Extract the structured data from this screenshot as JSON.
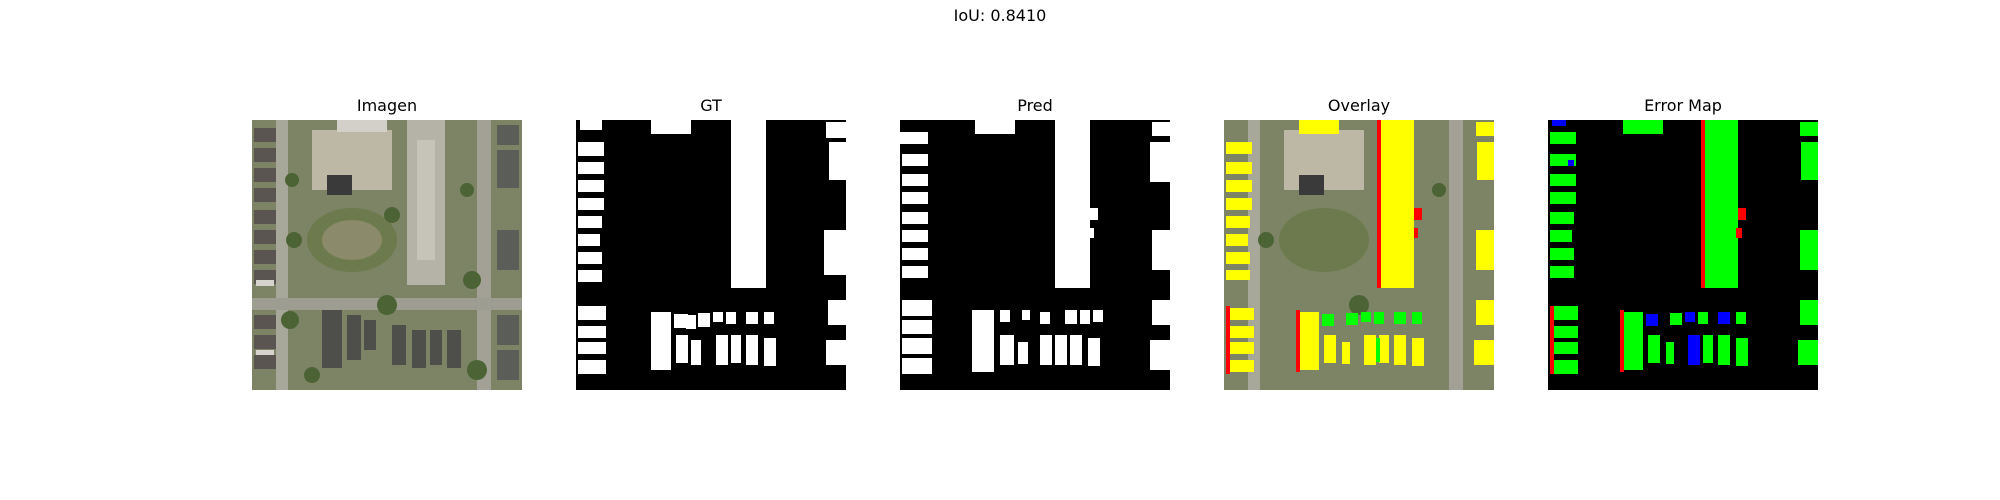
{
  "figure": {
    "suptitle": "IoU: 0.8410",
    "panels": [
      {
        "title": "Imagen",
        "kind": "aerial-image"
      },
      {
        "title": "GT",
        "kind": "ground-truth-mask"
      },
      {
        "title": "Pred",
        "kind": "prediction-mask"
      },
      {
        "title": "Overlay",
        "kind": "overlay"
      },
      {
        "title": "Error Map",
        "kind": "error-map"
      }
    ]
  },
  "colors": {
    "background": "#000000",
    "mask": "#ffffff",
    "true_positive_overlay": "#ffff00",
    "true_positive_error_map": "#00ff00",
    "false_positive": "#ff0000",
    "false_negative": "#0000ff"
  }
}
